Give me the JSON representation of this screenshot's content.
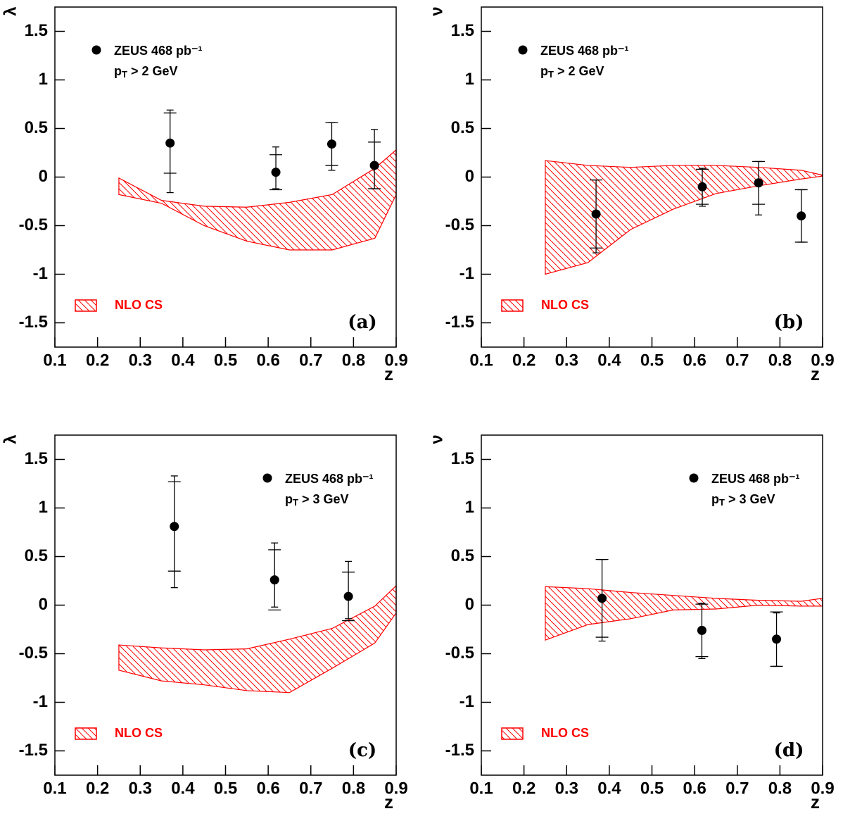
{
  "chart_data": [
    {
      "type": "scatter",
      "panel_label": "(a)",
      "y_label": "λ",
      "x_label": "z",
      "xlim": [
        0.1,
        0.9
      ],
      "ylim": [
        -1.75,
        1.75
      ],
      "xticks": [
        0.1,
        0.2,
        0.3,
        0.4,
        0.5,
        0.6,
        0.7,
        0.8,
        0.9
      ],
      "yticks": [
        -1.5,
        -1,
        -0.5,
        0,
        0.5,
        1,
        1.5
      ],
      "legend_loc": "upper left",
      "cut_label": [
        "p",
        "T",
        " > 2 GeV"
      ],
      "series": [
        {
          "name": "ZEUS 468 pb⁻¹",
          "color": "#000000",
          "x": [
            0.37,
            0.618,
            0.749,
            0.849
          ],
          "values": [
            0.35,
            0.05,
            0.34,
            0.12
          ],
          "errors": [
            [
              0.51,
              0.34
            ],
            [
              0.17,
              0.26
            ],
            [
              0.27,
              0.22
            ],
            [
              0.24,
              0.37
            ]
          ],
          "stat_errors": [
            0.31,
            0.18,
            0.22,
            0.24
          ]
        }
      ],
      "band": {
        "name": "NLO CS",
        "color": "#ff0000",
        "x": [
          0.25,
          0.35,
          0.45,
          0.55,
          0.65,
          0.75,
          0.85,
          0.9
        ],
        "upper": [
          -0.01,
          -0.24,
          -0.3,
          -0.31,
          -0.26,
          -0.18,
          0.09,
          0.28
        ],
        "lower": [
          -0.18,
          -0.27,
          -0.5,
          -0.66,
          -0.75,
          -0.75,
          -0.63,
          -0.18
        ]
      }
    },
    {
      "type": "scatter",
      "panel_label": "(b)",
      "y_label": "ν",
      "x_label": "z",
      "xlim": [
        0.1,
        0.9
      ],
      "ylim": [
        -1.75,
        1.75
      ],
      "xticks": [
        0.1,
        0.2,
        0.3,
        0.4,
        0.5,
        0.6,
        0.7,
        0.8,
        0.9
      ],
      "yticks": [
        -1.5,
        -1,
        -0.5,
        0,
        0.5,
        1,
        1.5
      ],
      "legend_loc": "upper left",
      "cut_label": [
        "p",
        "T",
        " > 2 GeV"
      ],
      "series": [
        {
          "name": "ZEUS 468 pb⁻¹",
          "color": "#000000",
          "x": [
            0.369,
            0.618,
            0.75,
            0.85
          ],
          "values": [
            -0.38,
            -0.1,
            -0.06,
            -0.4
          ],
          "errors": [
            [
              0.4,
              0.35
            ],
            [
              0.2,
              0.19
            ],
            [
              0.33,
              0.22
            ],
            [
              0.27,
              0.27
            ]
          ],
          "stat_errors": [
            0.35,
            0.18,
            0.22,
            0.27
          ]
        }
      ],
      "band": {
        "name": "NLO CS",
        "color": "#ff0000",
        "x": [
          0.25,
          0.35,
          0.45,
          0.55,
          0.65,
          0.75,
          0.85,
          0.9
        ],
        "upper": [
          0.17,
          0.12,
          0.1,
          0.12,
          0.12,
          0.1,
          0.07,
          0.02
        ],
        "lower": [
          -1.0,
          -0.88,
          -0.54,
          -0.33,
          -0.17,
          -0.09,
          -0.02,
          0.01
        ]
      }
    },
    {
      "type": "scatter",
      "panel_label": "(c)",
      "y_label": "λ",
      "x_label": "z",
      "xlim": [
        0.1,
        0.9
      ],
      "ylim": [
        -1.75,
        1.75
      ],
      "xticks": [
        0.1,
        0.2,
        0.3,
        0.4,
        0.5,
        0.6,
        0.7,
        0.8,
        0.9
      ],
      "yticks": [
        -1.5,
        -1,
        -0.5,
        0,
        0.5,
        1,
        1.5
      ],
      "legend_loc": "upper right",
      "cut_label": [
        "p",
        "T",
        " > 3 GeV"
      ],
      "series": [
        {
          "name": "ZEUS 468 pb⁻¹",
          "color": "#000000",
          "x": [
            0.38,
            0.615,
            0.788
          ],
          "values": [
            0.81,
            0.26,
            0.09
          ],
          "errors": [
            [
              0.63,
              0.52
            ],
            [
              0.28,
              0.38
            ],
            [
              0.23,
              0.36
            ]
          ],
          "stat_errors": [
            0.46,
            0.31,
            0.25
          ]
        }
      ],
      "band": {
        "name": "NLO CS",
        "color": "#ff0000",
        "x": [
          0.25,
          0.35,
          0.45,
          0.55,
          0.65,
          0.75,
          0.85,
          0.9
        ],
        "upper": [
          -0.41,
          -0.44,
          -0.46,
          -0.45,
          -0.35,
          -0.24,
          -0.01,
          0.2
        ],
        "lower": [
          -0.67,
          -0.78,
          -0.82,
          -0.88,
          -0.9,
          -0.65,
          -0.39,
          -0.08
        ]
      }
    },
    {
      "type": "scatter",
      "panel_label": "(d)",
      "y_label": "ν",
      "x_label": "z",
      "xlim": [
        0.1,
        0.9
      ],
      "ylim": [
        -1.75,
        1.75
      ],
      "xticks": [
        0.1,
        0.2,
        0.3,
        0.4,
        0.5,
        0.6,
        0.7,
        0.8,
        0.9
      ],
      "yticks": [
        -1.5,
        -1,
        -0.5,
        0,
        0.5,
        1,
        1.5
      ],
      "legend_loc": "upper right",
      "cut_label": [
        "p",
        "T",
        " > 3 GeV"
      ],
      "series": [
        {
          "name": "ZEUS 468 pb⁻¹",
          "color": "#000000",
          "x": [
            0.383,
            0.617,
            0.792
          ],
          "values": [
            0.07,
            -0.26,
            -0.35
          ],
          "errors": [
            [
              0.44,
              0.4
            ],
            [
              0.29,
              0.28
            ],
            [
              0.28,
              0.27
            ]
          ],
          "stat_errors": [
            0.4,
            0.27,
            0.28
          ]
        }
      ],
      "band": {
        "name": "NLO CS",
        "color": "#ff0000",
        "x": [
          0.25,
          0.35,
          0.45,
          0.55,
          0.65,
          0.75,
          0.85,
          0.9
        ],
        "upper": [
          0.19,
          0.17,
          0.13,
          0.1,
          0.07,
          0.05,
          0.04,
          0.07
        ],
        "lower": [
          -0.36,
          -0.2,
          -0.14,
          -0.05,
          -0.04,
          0.0,
          -0.01,
          -0.01
        ]
      }
    }
  ]
}
